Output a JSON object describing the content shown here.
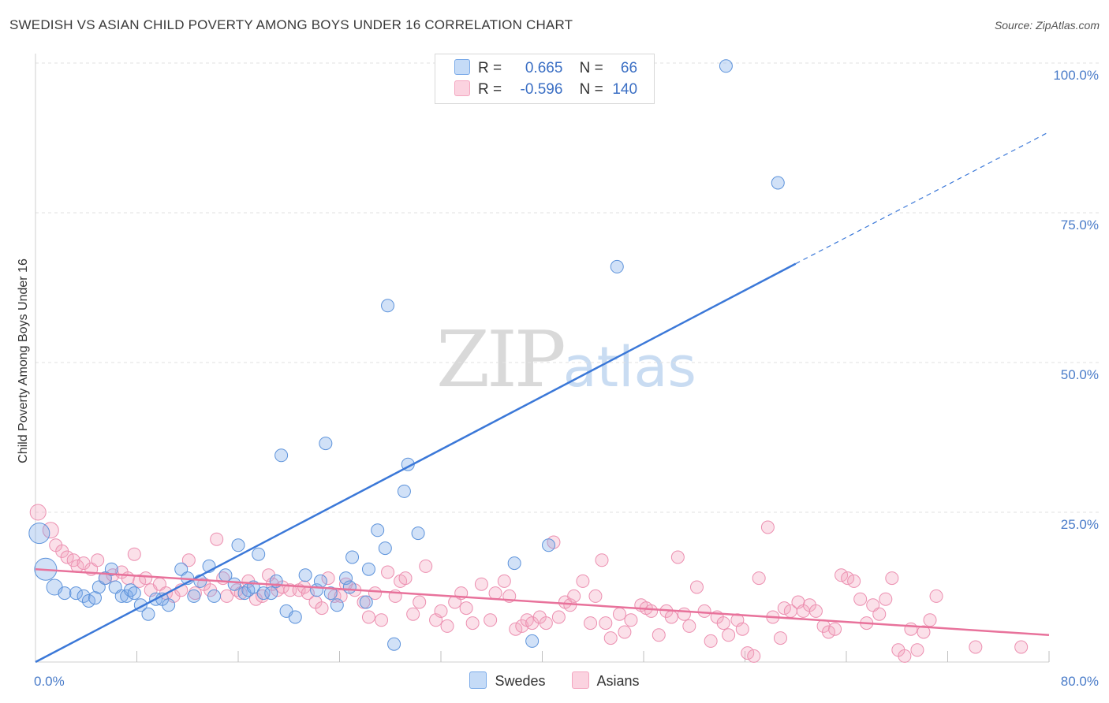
{
  "title": "SWEDISH VS ASIAN CHILD POVERTY AMONG BOYS UNDER 16 CORRELATION CHART",
  "source": "Source: ZipAtlas.com",
  "watermark": {
    "zip": "ZIP",
    "atlas": "atlas"
  },
  "colors": {
    "swedes": "#7aaae8",
    "asians": "#f4a6c0",
    "swedes_line": "#3b78d8",
    "asians_line": "#e8729b",
    "tick": "#4a7cc9"
  },
  "legend": {
    "rows": [
      {
        "r_label": "R =",
        "r_value": "0.665",
        "n_label": "N =",
        "n_value": "66"
      },
      {
        "r_label": "R =",
        "r_value": "-0.596",
        "n_label": "N =",
        "n_value": "140"
      }
    ]
  },
  "bottom_legend": {
    "swedes": "Swedes",
    "asians": "Asians"
  },
  "chart_data": {
    "type": "scatter",
    "ylabel": "Child Poverty Among Boys Under 16",
    "xlim": [
      0,
      80
    ],
    "ylim": [
      0,
      100
    ],
    "x_tick_labels": [
      "0.0%",
      "80.0%"
    ],
    "y_ticks": [
      25,
      50,
      75,
      100
    ],
    "y_tick_labels": [
      "25.0%",
      "50.0%",
      "75.0%",
      "100.0%"
    ],
    "grid": true,
    "legend_position": "top-center",
    "series": [
      {
        "name": "Swedes",
        "trend": {
          "x0": 0,
          "y0": 0,
          "x1": 60,
          "y1": 66.5,
          "dashed_to_x": 80,
          "dashed_to_y": 88.5
        },
        "points": [
          [
            0.3,
            21.5
          ],
          [
            0.8,
            15.5
          ],
          [
            1.5,
            12.5
          ],
          [
            2.3,
            11.5
          ],
          [
            3.2,
            11.5
          ],
          [
            3.8,
            11
          ],
          [
            4.2,
            10.2
          ],
          [
            4.7,
            10.7
          ],
          [
            5,
            12.5
          ],
          [
            5.5,
            14
          ],
          [
            6,
            15.5
          ],
          [
            6.3,
            12.5
          ],
          [
            6.8,
            11
          ],
          [
            7.2,
            11
          ],
          [
            7.5,
            12
          ],
          [
            7.8,
            11.5
          ],
          [
            8.3,
            9.5
          ],
          [
            8.9,
            8
          ],
          [
            9.5,
            10.5
          ],
          [
            10,
            10.5
          ],
          [
            10.5,
            9.5
          ],
          [
            11.5,
            15.5
          ],
          [
            12,
            14
          ],
          [
            12.5,
            11
          ],
          [
            13,
            13.5
          ],
          [
            13.7,
            16
          ],
          [
            14.1,
            11
          ],
          [
            15,
            14.5
          ],
          [
            15.7,
            13
          ],
          [
            16,
            19.5
          ],
          [
            16.5,
            11.5
          ],
          [
            16.8,
            12
          ],
          [
            17.2,
            12.5
          ],
          [
            17.6,
            18
          ],
          [
            18,
            11.5
          ],
          [
            18.6,
            11.5
          ],
          [
            19,
            13.5
          ],
          [
            19.4,
            34.5
          ],
          [
            19.8,
            8.5
          ],
          [
            20.5,
            7.5
          ],
          [
            21.3,
            14.5
          ],
          [
            22.2,
            12
          ],
          [
            22.5,
            13.5
          ],
          [
            22.9,
            36.5
          ],
          [
            23.3,
            11.5
          ],
          [
            23.8,
            9.5
          ],
          [
            24.5,
            14
          ],
          [
            24.8,
            12.5
          ],
          [
            25,
            17.5
          ],
          [
            26.1,
            10
          ],
          [
            26.3,
            15.5
          ],
          [
            27,
            22
          ],
          [
            27.6,
            19
          ],
          [
            27.8,
            59.5
          ],
          [
            28.3,
            3
          ],
          [
            29.1,
            28.5
          ],
          [
            29.4,
            33
          ],
          [
            30.2,
            21.5
          ],
          [
            37.8,
            16.5
          ],
          [
            39.2,
            3.5
          ],
          [
            40.5,
            19.5
          ],
          [
            42.5,
            98.5
          ],
          [
            45.6,
            98.5
          ],
          [
            45.9,
            66
          ],
          [
            54.5,
            99.5
          ],
          [
            58.6,
            80
          ]
        ]
      },
      {
        "name": "Asians",
        "trend": {
          "x0": 0,
          "y0": 15.5,
          "x1": 80,
          "y1": 4.5
        },
        "points": [
          [
            0.2,
            25
          ],
          [
            1.2,
            22
          ],
          [
            1.6,
            19.5
          ],
          [
            2.1,
            18.5
          ],
          [
            2.5,
            17.5
          ],
          [
            3,
            17
          ],
          [
            3.3,
            16
          ],
          [
            3.8,
            16.5
          ],
          [
            4.4,
            15.5
          ],
          [
            4.9,
            17
          ],
          [
            5.5,
            14
          ],
          [
            6.1,
            14.5
          ],
          [
            6.8,
            15
          ],
          [
            7.3,
            14
          ],
          [
            7.8,
            18
          ],
          [
            8.2,
            13.5
          ],
          [
            8.7,
            14
          ],
          [
            9.1,
            12
          ],
          [
            9.8,
            13
          ],
          [
            10.3,
            11.5
          ],
          [
            10.9,
            11
          ],
          [
            11.5,
            12
          ],
          [
            12.1,
            17
          ],
          [
            12.6,
            11.5
          ],
          [
            13.3,
            13
          ],
          [
            13.8,
            12
          ],
          [
            14.3,
            20.5
          ],
          [
            14.8,
            14
          ],
          [
            15.1,
            11
          ],
          [
            15.9,
            12
          ],
          [
            16.2,
            11.5
          ],
          [
            16.8,
            13.5
          ],
          [
            17.4,
            10.5
          ],
          [
            17.9,
            11
          ],
          [
            18.4,
            14.5
          ],
          [
            18.7,
            13
          ],
          [
            19.1,
            12
          ],
          [
            19.5,
            12.5
          ],
          [
            20.1,
            12
          ],
          [
            20.8,
            12
          ],
          [
            21.2,
            12.5
          ],
          [
            21.5,
            11.5
          ],
          [
            22.1,
            10
          ],
          [
            22.6,
            9
          ],
          [
            23.1,
            14
          ],
          [
            23.6,
            11
          ],
          [
            24.1,
            11
          ],
          [
            24.5,
            13
          ],
          [
            25.2,
            12
          ],
          [
            25.9,
            10
          ],
          [
            26.3,
            7.5
          ],
          [
            26.8,
            11.5
          ],
          [
            27.3,
            7
          ],
          [
            27.8,
            15
          ],
          [
            28.4,
            11
          ],
          [
            28.8,
            13.5
          ],
          [
            29.2,
            14
          ],
          [
            29.8,
            8
          ],
          [
            30.3,
            10
          ],
          [
            30.8,
            16
          ],
          [
            31.6,
            7
          ],
          [
            32,
            8.5
          ],
          [
            32.5,
            6
          ],
          [
            33.1,
            10
          ],
          [
            33.6,
            11.5
          ],
          [
            34,
            9
          ],
          [
            34.5,
            6.5
          ],
          [
            35.2,
            13
          ],
          [
            35.9,
            7
          ],
          [
            36.3,
            11.5
          ],
          [
            37,
            13.5
          ],
          [
            37.4,
            11
          ],
          [
            37.9,
            5.5
          ],
          [
            38.4,
            6
          ],
          [
            38.8,
            7
          ],
          [
            39.2,
            6.5
          ],
          [
            39.8,
            7.5
          ],
          [
            40.3,
            6.5
          ],
          [
            40.9,
            20
          ],
          [
            41.3,
            7.5
          ],
          [
            41.8,
            10
          ],
          [
            42.2,
            9.5
          ],
          [
            42.5,
            11
          ],
          [
            43.2,
            13.5
          ],
          [
            43.8,
            6.5
          ],
          [
            44.2,
            11
          ],
          [
            44.7,
            17
          ],
          [
            45,
            6.5
          ],
          [
            45.4,
            4
          ],
          [
            46.1,
            8
          ],
          [
            46.5,
            5
          ],
          [
            47,
            7
          ],
          [
            47.8,
            9.5
          ],
          [
            48.2,
            9
          ],
          [
            48.6,
            8.5
          ],
          [
            49.2,
            4.5
          ],
          [
            49.8,
            8.5
          ],
          [
            50.2,
            7.5
          ],
          [
            50.7,
            17.5
          ],
          [
            51.2,
            8
          ],
          [
            51.6,
            6
          ],
          [
            52.2,
            12.5
          ],
          [
            52.8,
            8.5
          ],
          [
            53.3,
            3.5
          ],
          [
            53.8,
            7.5
          ],
          [
            54.3,
            6.5
          ],
          [
            54.7,
            4.5
          ],
          [
            55.4,
            7
          ],
          [
            55.8,
            5.5
          ],
          [
            56.2,
            1.5
          ],
          [
            56.7,
            1
          ],
          [
            57.1,
            14
          ],
          [
            57.8,
            22.5
          ],
          [
            58.2,
            7.5
          ],
          [
            58.8,
            4
          ],
          [
            59.1,
            9
          ],
          [
            59.6,
            8.5
          ],
          [
            60.2,
            10
          ],
          [
            60.6,
            8.5
          ],
          [
            61.1,
            9.5
          ],
          [
            61.6,
            8.5
          ],
          [
            62.2,
            6
          ],
          [
            62.6,
            5
          ],
          [
            63.1,
            5.5
          ],
          [
            63.6,
            14.5
          ],
          [
            64.1,
            14
          ],
          [
            64.6,
            13.5
          ],
          [
            65.1,
            10.5
          ],
          [
            65.6,
            6.5
          ],
          [
            66.1,
            9.5
          ],
          [
            66.6,
            8
          ],
          [
            67.1,
            10.5
          ],
          [
            67.6,
            14
          ],
          [
            68.1,
            2
          ],
          [
            68.6,
            1
          ],
          [
            69.1,
            5.5
          ],
          [
            69.6,
            2
          ],
          [
            70.1,
            5
          ],
          [
            70.6,
            7
          ],
          [
            71.1,
            11
          ],
          [
            74.2,
            2.5
          ],
          [
            77.8,
            2.5
          ]
        ]
      }
    ]
  }
}
